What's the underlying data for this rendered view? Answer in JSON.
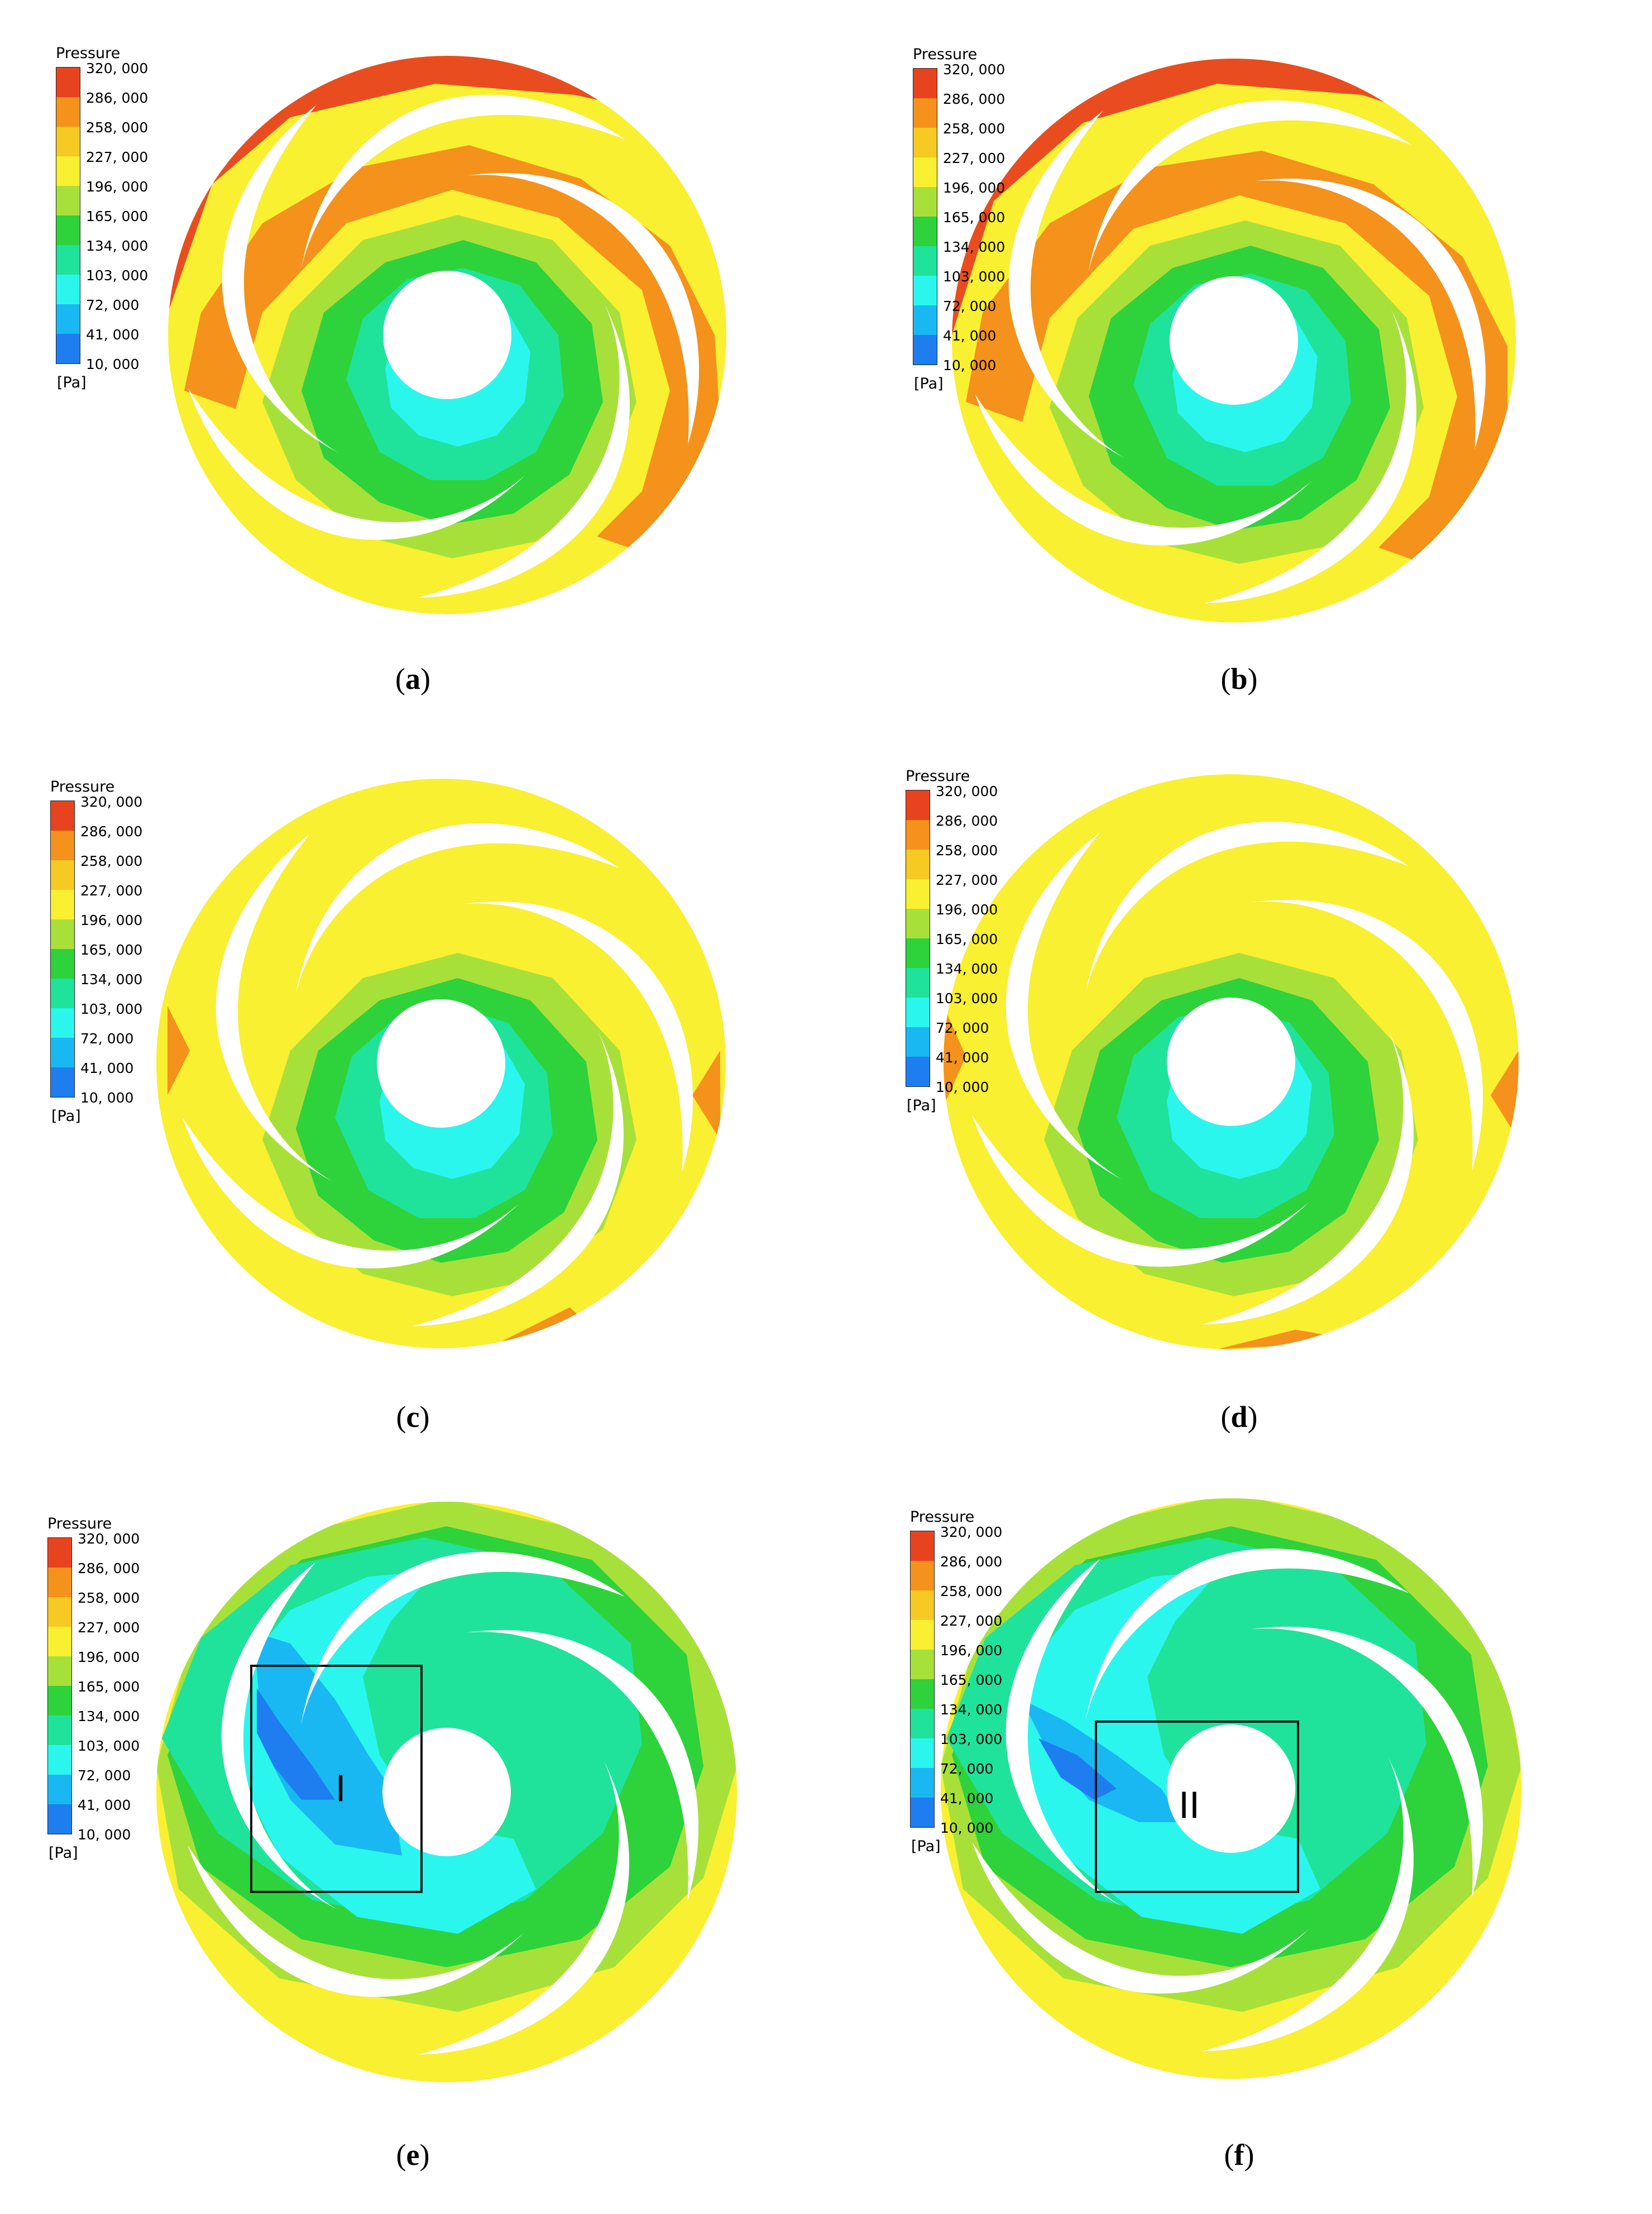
{
  "legend": {
    "title": "Pressure",
    "unit": "[Pa]",
    "ticks": [
      "320, 000",
      "286, 000",
      "258, 000",
      "227, 000",
      "196, 000",
      "165, 000",
      "134, 000",
      "103, 000",
      "72, 000",
      "41, 000",
      "10, 000"
    ],
    "colors": [
      "#e8431f",
      "#f4921c",
      "#f6c923",
      "#f8f030",
      "#a8e03a",
      "#2ed23a",
      "#1fe39a",
      "#2af6ee",
      "#19b8f2",
      "#1e7ef0",
      "#1a3bd8"
    ]
  },
  "panels": [
    {
      "id": "a",
      "caption_open": "(",
      "caption_letter": "a",
      "caption_close": ")",
      "region_label": ""
    },
    {
      "id": "b",
      "caption_open": "(",
      "caption_letter": "b",
      "caption_close": ")",
      "region_label": ""
    },
    {
      "id": "c",
      "caption_open": "(",
      "caption_letter": "c",
      "caption_close": ")",
      "region_label": ""
    },
    {
      "id": "d",
      "caption_open": "(",
      "caption_letter": "d",
      "caption_close": ")",
      "region_label": ""
    },
    {
      "id": "e",
      "caption_open": "(",
      "caption_letter": "e",
      "caption_close": ")",
      "region_label": "I"
    },
    {
      "id": "f",
      "caption_open": "(",
      "caption_letter": "f",
      "caption_close": ")",
      "region_label": "II"
    }
  ]
}
